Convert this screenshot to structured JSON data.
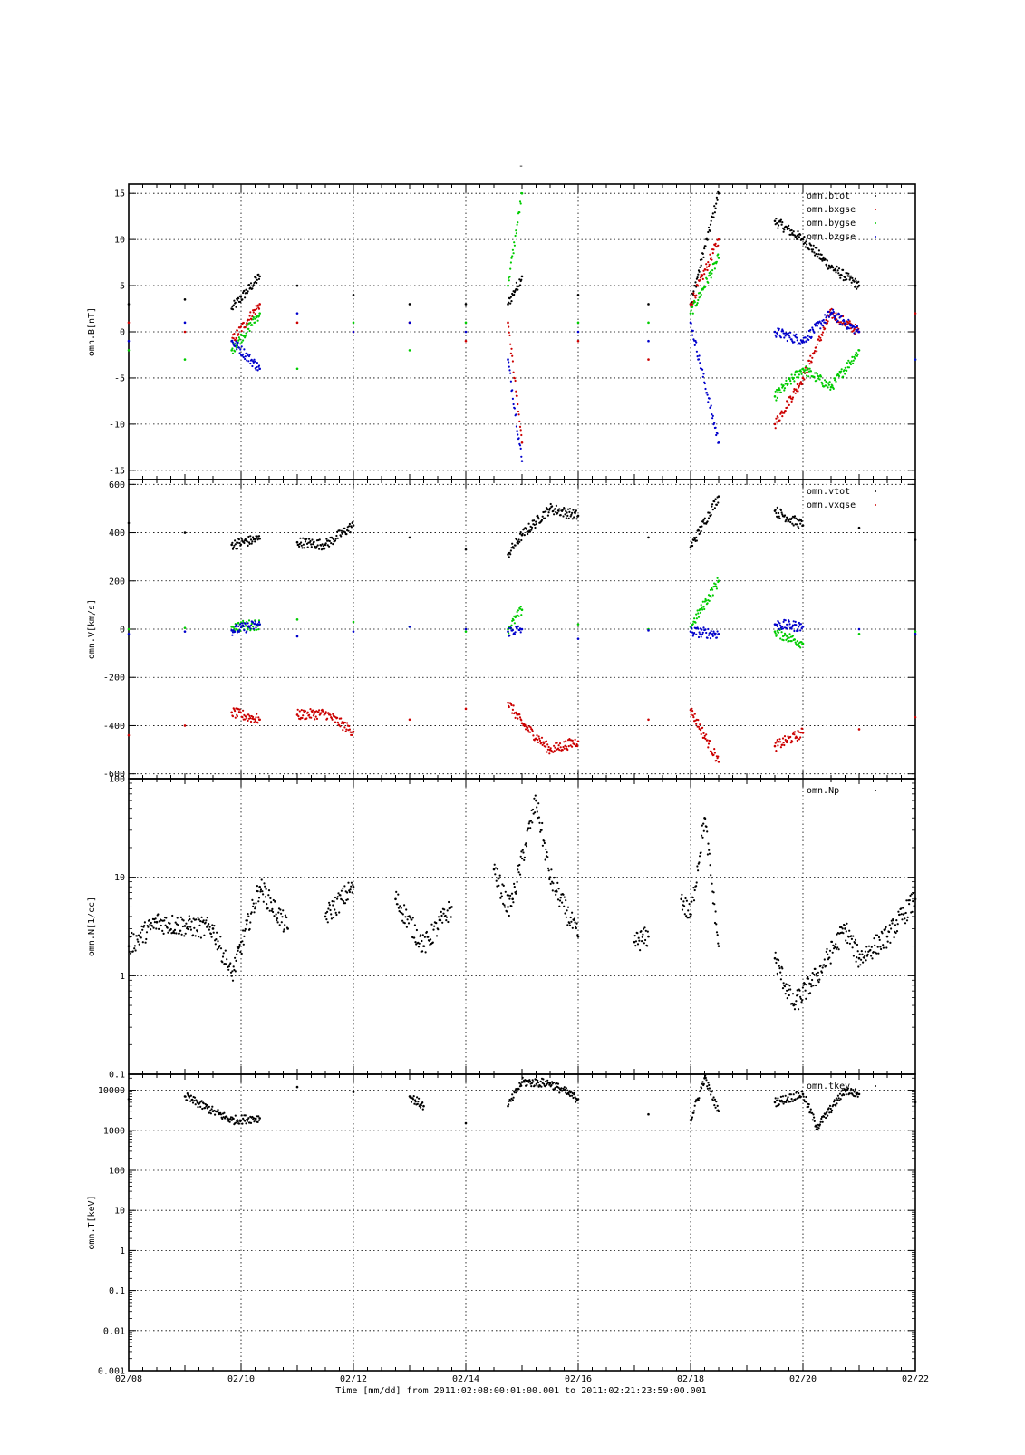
{
  "title_mark": "-",
  "x_caption": "Time [mm/dd]  from 2011:02:08:00:01:00.001  to  2011:02:21:23:59:00.001",
  "x_tick_labels": [
    "02/08",
    "02/10",
    "02/12",
    "02/14",
    "02/16",
    "02/18",
    "02/20",
    "02/22"
  ],
  "colors": {
    "black": "#000000",
    "red": "#cc0000",
    "green": "#00cc00",
    "blue": "#0000cc"
  },
  "chart_data": [
    {
      "type": "scatter",
      "ylabel": "omn.B[nT]",
      "xlim": [
        "02/08",
        "02/22"
      ],
      "ylim": [
        -16,
        16
      ],
      "yscale": "linear",
      "grid": true,
      "legend_position": "top-right",
      "ytick_labels": [
        "15",
        "10",
        "5",
        "0",
        "-5",
        "-10",
        "-15"
      ],
      "series": [
        {
          "name": "omn.btot",
          "color": "#000000",
          "x": [
            "02/08",
            "02/09",
            "02/09 20:00",
            "02/10 08:00",
            "02/11",
            "02/12",
            "02/13",
            "02/14",
            "02/14 18:00",
            "02/15",
            "02/16",
            "02/17 06:00",
            "02/18",
            "02/18 12:00",
            "02/19 12:00",
            "02/20",
            "02/20 12:00",
            "02/21",
            "02/22"
          ],
          "y": [
            3,
            3.5,
            2.5,
            6,
            5,
            4,
            3,
            3,
            3,
            6,
            4,
            3,
            3,
            15,
            12,
            10,
            7,
            5,
            5
          ]
        },
        {
          "name": "omn.bxgse",
          "color": "#cc0000",
          "x": [
            "02/08",
            "02/09",
            "02/09 20:00",
            "02/10 08:00",
            "02/11",
            "02/12",
            "02/13",
            "02/14",
            "02/14 18:00",
            "02/15",
            "02/16",
            "02/17 06:00",
            "02/18",
            "02/18 12:00",
            "02/19 12:00",
            "02/20",
            "02/20 12:00",
            "02/21",
            "02/22"
          ],
          "y": [
            1,
            0,
            -1,
            3,
            1,
            0,
            1,
            -1,
            1,
            -12,
            -1,
            -3,
            3,
            10,
            -10,
            -5,
            2,
            0,
            2
          ]
        },
        {
          "name": "omn.bygse",
          "color": "#00cc00",
          "x": [
            "02/08",
            "02/09",
            "02/09 20:00",
            "02/10 08:00",
            "02/11",
            "02/12",
            "02/13",
            "02/14",
            "02/14 18:00",
            "02/15",
            "02/16",
            "02/17 06:00",
            "02/18",
            "02/18 12:00",
            "02/19 12:00",
            "02/20",
            "02/20 12:00",
            "02/21",
            "02/22"
          ],
          "y": [
            -2,
            -3,
            -2,
            2,
            -4,
            1,
            -2,
            1,
            5,
            15,
            1,
            1,
            2,
            8,
            -7,
            -4,
            -6,
            -2,
            -3
          ]
        },
        {
          "name": "omn.bzgse",
          "color": "#0000cc",
          "x": [
            "02/08",
            "02/09",
            "02/09 20:00",
            "02/10 08:00",
            "02/11",
            "02/12",
            "02/13",
            "02/14",
            "02/14 18:00",
            "02/15",
            "02/16",
            "02/17 06:00",
            "02/18",
            "02/18 12:00",
            "02/19 12:00",
            "02/20",
            "02/20 12:00",
            "02/21",
            "02/22"
          ],
          "y": [
            -1,
            1,
            -1,
            -4,
            2,
            0,
            1,
            0,
            -3,
            -14,
            0,
            -1,
            1,
            -12,
            0,
            -1,
            2,
            0,
            -3
          ]
        }
      ]
    },
    {
      "type": "scatter",
      "ylabel": "omn.V[km/s]",
      "xlim": [
        "02/08",
        "02/22"
      ],
      "ylim": [
        -620,
        620
      ],
      "yscale": "linear",
      "grid": true,
      "legend_position": "top-right",
      "ytick_labels": [
        "600",
        "400",
        "200",
        "0",
        "-200",
        "-400",
        "-600"
      ],
      "series": [
        {
          "name": "omn.vtot",
          "color": "#000000",
          "x": [
            "02/08",
            "02/09",
            "02/09 20:00",
            "02/10 08:00",
            "02/11",
            "02/11 12:00",
            "02/12",
            "02/13",
            "02/14",
            "02/14 18:00",
            "02/15",
            "02/15 12:00",
            "02/16",
            "02/17 06:00",
            "02/18",
            "02/18 12:00",
            "02/19 12:00",
            "02/20",
            "02/21",
            "02/22"
          ],
          "y": [
            440,
            400,
            350,
            375,
            360,
            350,
            430,
            380,
            330,
            310,
            390,
            500,
            470,
            380,
            340,
            550,
            490,
            430,
            420,
            370
          ]
        },
        {
          "name": "omn.vxgse",
          "color": "#cc0000",
          "x": [
            "02/08",
            "02/09",
            "02/09 20:00",
            "02/10 08:00",
            "02/11",
            "02/11 12:00",
            "02/12",
            "02/13",
            "02/14",
            "02/14 18:00",
            "02/15",
            "02/15 12:00",
            "02/16",
            "02/17 06:00",
            "02/18",
            "02/18 12:00",
            "02/19 12:00",
            "02/20",
            "02/21",
            "02/22"
          ],
          "y": [
            -440,
            -400,
            -345,
            -375,
            -355,
            -350,
            -425,
            -375,
            -330,
            -305,
            -390,
            -500,
            -465,
            -375,
            -335,
            -550,
            -485,
            -430,
            -415,
            -365
          ]
        },
        {
          "name": "",
          "color": "#00cc00",
          "x": [
            "02/08",
            "02/09",
            "02/09 20:00",
            "02/10 08:00",
            "02/11",
            "02/12",
            "02/13",
            "02/14",
            "02/14 18:00",
            "02/15",
            "02/16",
            "02/17 06:00",
            "02/18",
            "02/18 12:00",
            "02/19 12:00",
            "02/20",
            "02/21",
            "02/22"
          ],
          "y": [
            0,
            5,
            10,
            20,
            40,
            30,
            10,
            -10,
            0,
            80,
            20,
            0,
            10,
            200,
            -10,
            -60,
            -20,
            -10
          ]
        },
        {
          "name": "",
          "color": "#0000cc",
          "x": [
            "02/08",
            "02/09",
            "02/09 20:00",
            "02/10 08:00",
            "02/11",
            "02/12",
            "02/13",
            "02/14",
            "02/14 18:00",
            "02/15",
            "02/16",
            "02/17 06:00",
            "02/18",
            "02/18 12:00",
            "02/19 12:00",
            "02/20",
            "02/21",
            "02/22"
          ],
          "y": [
            -20,
            -10,
            -5,
            20,
            -30,
            -10,
            10,
            0,
            -10,
            0,
            -40,
            -5,
            -10,
            -20,
            20,
            10,
            0,
            -20
          ]
        }
      ]
    },
    {
      "type": "scatter",
      "ylabel": "omn.N[1/cc]",
      "xlim": [
        "02/08",
        "02/22"
      ],
      "ylim": [
        0.1,
        100
      ],
      "yscale": "log",
      "grid": true,
      "legend_position": "top-right",
      "ytick_labels": [
        "100",
        "10",
        "1",
        "0.1"
      ],
      "series": [
        {
          "name": "omn.Np",
          "color": "#000000",
          "x": [
            "02/08",
            "02/08 12:00",
            "02/09",
            "02/09 12:00",
            "02/09 20:00",
            "02/10 08:00",
            "02/10 20:00",
            "02/11 12:00",
            "02/12",
            "02/12 18:00",
            "02/13 06:00",
            "02/13 18:00",
            "02/14 12:00",
            "02/14 18:00",
            "02/14 20:00",
            "02/15 06:00",
            "02/15 12:00",
            "02/16",
            "02/17",
            "02/17 06:00",
            "02/17 20:00",
            "02/18",
            "02/18 06:00",
            "02/18 12:00",
            "02/19 12:00",
            "02/19 20:00",
            "02/20 06:00",
            "02/20 18:00",
            "02/21",
            "02/21 12:00",
            "02/22"
          ],
          "y": [
            2,
            3.5,
            3.2,
            3,
            1,
            8,
            3,
            4,
            8,
            6,
            2,
            5,
            12,
            5,
            6,
            60,
            10,
            2.5,
            2.2,
            2.5,
            6,
            4,
            40,
            2,
            1.5,
            0.5,
            1,
            3,
            1.5,
            2.5,
            6
          ]
        }
      ]
    },
    {
      "type": "scatter",
      "ylabel": "omn.T[keV]",
      "xlim": [
        "02/08",
        "02/22"
      ],
      "ylim": [
        0.001,
        25000
      ],
      "yscale": "log",
      "grid": true,
      "legend_position": "top-right",
      "ytick_labels": [
        "10000",
        "1000",
        "100",
        "10",
        "1",
        "0.1",
        "0.01",
        "0.001"
      ],
      "series": [
        {
          "name": "omn.tkev",
          "color": "#000000",
          "x": [
            "02/08",
            "02/09",
            "02/09 12:00",
            "02/09 20:00",
            "02/10 08:00",
            "02/11",
            "02/12",
            "02/13",
            "02/13 06:00",
            "02/14",
            "02/14 18:00",
            "02/15",
            "02/15 12:00",
            "02/16",
            "02/17 06:00",
            "02/18",
            "02/18 06:00",
            "02/18 12:00",
            "02/19 12:00",
            "02/20",
            "02/20 06:00",
            "02/20 18:00",
            "02/21",
            "02/22"
          ],
          "y": [
            6000,
            7000,
            3000,
            1800,
            2000,
            12000,
            9000,
            7000,
            4000,
            1500,
            4000,
            16000,
            15000,
            6000,
            2500,
            1800,
            20000,
            3000,
            5000,
            8000,
            1200,
            10000,
            8000,
            5000
          ]
        }
      ]
    }
  ]
}
